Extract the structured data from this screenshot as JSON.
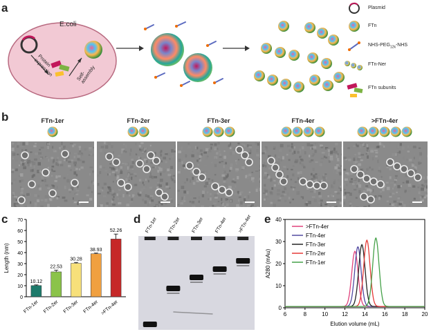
{
  "panels": {
    "a": "a",
    "b": "b",
    "c": "c",
    "d": "d",
    "e": "e"
  },
  "panel_a": {
    "ecoli": "E.coli",
    "protein_expression": "Protein expression",
    "self_assembly": "Self-assembly",
    "legend": [
      {
        "label": "Plasmid",
        "icon": "plasmid-icon"
      },
      {
        "label": "FTn",
        "icon": "ftn-icon"
      },
      {
        "label": "NHS-PEG",
        "sub": "12k",
        "suffix": "-NHS",
        "icon": "linker-icon"
      },
      {
        "label": "FTn-Ner",
        "icon": "ftn-chain-icon"
      },
      {
        "label": "FTn subunits",
        "icon": "subunits-icon"
      }
    ]
  },
  "panel_b": {
    "titles": [
      "FTn-1er",
      "FTn-2er",
      "FTn-3er",
      "FTn-4er",
      ">FTn-4er"
    ],
    "chain_counts": [
      1,
      2,
      3,
      4,
      5
    ]
  },
  "chart_data": [
    {
      "panel": "c",
      "type": "bar",
      "categories": [
        "FTn-1er",
        "FTn-2er",
        "FTn-3er",
        "FTn-4er",
        ">FTn-4er"
      ],
      "values": [
        10.12,
        22.53,
        30.28,
        38.93,
        52.26
      ],
      "errors": [
        0.6,
        1.5,
        0.8,
        0.6,
        4.5
      ],
      "colors": [
        "#1d7a6b",
        "#8bc34a",
        "#f7e07a",
        "#f0a040",
        "#c62828"
      ],
      "value_labels": [
        "10.12",
        "22.53",
        "30.28",
        "38.93",
        "52.26"
      ],
      "ylabel": "Length (nm)",
      "ylim": [
        0,
        70
      ],
      "yticks": [
        "0",
        "10",
        "20",
        "30",
        "40",
        "50",
        "60",
        "70"
      ]
    },
    {
      "panel": "d",
      "type": "gel",
      "lanes": [
        "FTn-1er",
        "FTn-2er",
        "FTn-3er",
        "FTn-4er",
        ">FTn-4er"
      ]
    },
    {
      "panel": "e",
      "type": "line",
      "xlabel": "Elution volume (mL)",
      "ylabel": "A280 (mAu)",
      "xlim": [
        6,
        20
      ],
      "ylim": [
        0,
        40
      ],
      "xticks": [
        "6",
        "8",
        "10",
        "12",
        "14",
        "16",
        "18",
        "20"
      ],
      "yticks": [
        "0",
        "10",
        "20",
        "30",
        "40"
      ],
      "legend_position": "top-left",
      "series": [
        {
          "name": ">FTn-4er",
          "color": "#e0407a",
          "peak_x": 13.0,
          "peak_y": 25,
          "width": 0.45
        },
        {
          "name": "FTn-4er",
          "color": "#5048a0",
          "peak_x": 13.3,
          "peak_y": 27,
          "width": 0.45
        },
        {
          "name": "FTn-3er",
          "color": "#222222",
          "peak_x": 13.7,
          "peak_y": 28,
          "width": 0.45
        },
        {
          "name": "FTn-2er",
          "color": "#e53935",
          "peak_x": 14.2,
          "peak_y": 30,
          "width": 0.45
        },
        {
          "name": "FTn-1er",
          "color": "#43a047",
          "peak_x": 15.1,
          "peak_y": 31,
          "width": 0.45
        }
      ]
    }
  ]
}
